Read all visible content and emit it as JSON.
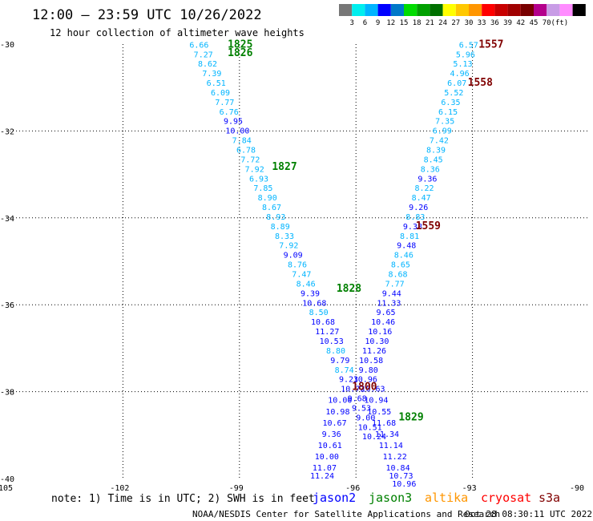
{
  "header": {
    "title": "12:00 – 23:59 UTC 10/26/2022",
    "subtitle": "12 hour collection of altimeter wave heights"
  },
  "colorbar": {
    "colors": [
      "#777777",
      "#00eeee",
      "#00b4ff",
      "#0000ff",
      "#0078c8",
      "#00dc00",
      "#00a000",
      "#007000",
      "#ffff00",
      "#ffc800",
      "#ff9600",
      "#ff0000",
      "#c80000",
      "#a00000",
      "#780000",
      "#b4008c",
      "#c89ce6",
      "#ff8cff",
      "#000000"
    ],
    "labels": [
      "3",
      "6",
      "9",
      "12",
      "15",
      "18",
      "21",
      "24",
      "27",
      "30",
      "33",
      "36",
      "39",
      "42",
      "45",
      "70",
      "(ft)"
    ]
  },
  "chart_data": {
    "type": "scatter",
    "xlim": [
      -105,
      -90
    ],
    "ylim": [
      -40,
      -30
    ],
    "xticks": [
      -105,
      -102,
      -99,
      -96,
      -93,
      -90
    ],
    "yticks": [
      -30,
      -32,
      -34,
      -36,
      -38,
      -40
    ],
    "xtick_labels": [
      "-105",
      "-102",
      "-99",
      "-96",
      "-93",
      "-90"
    ],
    "ytick_labels": [
      "-30",
      "-32",
      "-34",
      "-36",
      "-38",
      "-40"
    ],
    "grid": true,
    "track_left": {
      "colors": {
        "lo": "#00b4ff",
        "mid": "#0000ff"
      },
      "points": [
        {
          "x": -100.04,
          "y": -30.08,
          "v": "6.66",
          "c": "lo"
        },
        {
          "x": -99.93,
          "y": -30.3,
          "v": "7.27",
          "c": "lo"
        },
        {
          "x": -99.82,
          "y": -30.52,
          "v": "8.62",
          "c": "lo"
        },
        {
          "x": -99.71,
          "y": -30.74,
          "v": "7.39",
          "c": "lo"
        },
        {
          "x": -99.6,
          "y": -30.96,
          "v": "6.51",
          "c": "lo"
        },
        {
          "x": -99.49,
          "y": -31.18,
          "v": "6.09",
          "c": "lo"
        },
        {
          "x": -99.38,
          "y": -31.4,
          "v": "7.77",
          "c": "lo"
        },
        {
          "x": -99.27,
          "y": -31.62,
          "v": "6.76",
          "c": "lo"
        },
        {
          "x": -99.16,
          "y": -31.84,
          "v": "9.95",
          "c": "mid"
        },
        {
          "x": -99.05,
          "y": -32.06,
          "v": "10.00",
          "c": "mid"
        },
        {
          "x": -98.94,
          "y": -32.28,
          "v": "7.84",
          "c": "lo"
        },
        {
          "x": -98.83,
          "y": -32.5,
          "v": "6.78",
          "c": "lo"
        },
        {
          "x": -98.72,
          "y": -32.72,
          "v": "7.72",
          "c": "lo"
        },
        {
          "x": -98.61,
          "y": -32.94,
          "v": "7.92",
          "c": "lo"
        },
        {
          "x": -98.5,
          "y": -33.16,
          "v": "6.93",
          "c": "lo"
        },
        {
          "x": -98.39,
          "y": -33.38,
          "v": "7.85",
          "c": "lo"
        },
        {
          "x": -98.28,
          "y": -33.6,
          "v": "8.90",
          "c": "lo"
        },
        {
          "x": -98.17,
          "y": -33.82,
          "v": "8.67",
          "c": "lo"
        },
        {
          "x": -98.06,
          "y": -34.04,
          "v": "8.93",
          "c": "lo"
        },
        {
          "x": -97.95,
          "y": -34.26,
          "v": "8.89",
          "c": "lo"
        },
        {
          "x": -97.84,
          "y": -34.48,
          "v": "8.33",
          "c": "lo"
        },
        {
          "x": -97.73,
          "y": -34.7,
          "v": "7.92",
          "c": "lo"
        },
        {
          "x": -97.62,
          "y": -34.92,
          "v": "9.09",
          "c": "mid"
        },
        {
          "x": -97.51,
          "y": -35.14,
          "v": "8.76",
          "c": "lo"
        },
        {
          "x": -97.4,
          "y": -35.36,
          "v": "7.47",
          "c": "lo"
        },
        {
          "x": -97.29,
          "y": -35.58,
          "v": "8.46",
          "c": "lo"
        },
        {
          "x": -97.18,
          "y": -35.8,
          "v": "9.39",
          "c": "mid"
        },
        {
          "x": -97.07,
          "y": -36.02,
          "v": "10.68",
          "c": "mid"
        },
        {
          "x": -96.96,
          "y": -36.24,
          "v": "8.50",
          "c": "lo"
        },
        {
          "x": -96.85,
          "y": -36.46,
          "v": "10.68",
          "c": "mid"
        },
        {
          "x": -96.74,
          "y": -36.68,
          "v": "11.27",
          "c": "mid"
        },
        {
          "x": -96.63,
          "y": -36.9,
          "v": "10.53",
          "c": "mid"
        },
        {
          "x": -96.52,
          "y": -37.12,
          "v": "8.80",
          "c": "lo"
        },
        {
          "x": -96.41,
          "y": -37.34,
          "v": "9.79",
          "c": "mid"
        },
        {
          "x": -96.3,
          "y": -37.56,
          "v": "8.74",
          "c": "lo"
        },
        {
          "x": -96.19,
          "y": -37.78,
          "v": "9.23",
          "c": "mid"
        },
        {
          "x": -96.08,
          "y": -38.0,
          "v": "10.72",
          "c": "mid"
        },
        {
          "x": -95.97,
          "y": -38.22,
          "v": "9.68",
          "c": "mid"
        },
        {
          "x": -95.86,
          "y": -38.44,
          "v": "9.53",
          "c": "mid"
        },
        {
          "x": -95.75,
          "y": -38.66,
          "v": "9.00",
          "c": "mid"
        },
        {
          "x": -95.64,
          "y": -38.88,
          "v": "10.51",
          "c": "mid"
        },
        {
          "x": -95.53,
          "y": -39.1,
          "v": "10.24",
          "c": "mid"
        }
      ]
    },
    "track_left_lower": {
      "points": [
        {
          "x": -96.41,
          "y": -38.26,
          "v": "10.00"
        },
        {
          "x": -96.47,
          "y": -38.52,
          "v": "10.98"
        },
        {
          "x": -96.55,
          "y": -38.78,
          "v": "10.67"
        },
        {
          "x": -96.63,
          "y": -39.04,
          "v": "9.36"
        },
        {
          "x": -96.67,
          "y": -39.3,
          "v": "10.61"
        },
        {
          "x": -96.75,
          "y": -39.56,
          "v": "10.00"
        },
        {
          "x": -96.81,
          "y": -39.82,
          "v": "11.07"
        },
        {
          "x": -96.87,
          "y": -40.0,
          "v": "11.24"
        }
      ]
    },
    "track_right": {
      "points": [
        {
          "x": -93.1,
          "y": -30.08,
          "v": "6.57",
          "c": "lo"
        },
        {
          "x": -93.18,
          "y": -30.3,
          "v": "5.96",
          "c": "lo"
        },
        {
          "x": -93.25,
          "y": -30.52,
          "v": "5.13",
          "c": "lo"
        },
        {
          "x": -93.33,
          "y": -30.74,
          "v": "4.96",
          "c": "lo"
        },
        {
          "x": -93.4,
          "y": -30.96,
          "v": "6.07",
          "c": "lo"
        },
        {
          "x": -93.48,
          "y": -31.18,
          "v": "5.52",
          "c": "lo"
        },
        {
          "x": -93.56,
          "y": -31.4,
          "v": "6.35",
          "c": "lo"
        },
        {
          "x": -93.63,
          "y": -31.62,
          "v": "6.15",
          "c": "lo"
        },
        {
          "x": -93.71,
          "y": -31.84,
          "v": "7.35",
          "c": "lo"
        },
        {
          "x": -93.78,
          "y": -32.06,
          "v": "6.99",
          "c": "lo"
        },
        {
          "x": -93.86,
          "y": -32.28,
          "v": "7.42",
          "c": "lo"
        },
        {
          "x": -93.94,
          "y": -32.5,
          "v": "8.39",
          "c": "lo"
        },
        {
          "x": -94.01,
          "y": -32.72,
          "v": "8.45",
          "c": "lo"
        },
        {
          "x": -94.09,
          "y": -32.94,
          "v": "8.36",
          "c": "lo"
        },
        {
          "x": -94.16,
          "y": -33.16,
          "v": "9.36",
          "c": "mid"
        },
        {
          "x": -94.24,
          "y": -33.38,
          "v": "8.22",
          "c": "lo"
        },
        {
          "x": -94.32,
          "y": -33.6,
          "v": "8.47",
          "c": "lo"
        },
        {
          "x": -94.39,
          "y": -33.82,
          "v": "9.26",
          "c": "mid"
        },
        {
          "x": -94.47,
          "y": -34.04,
          "v": "8.83",
          "c": "lo"
        },
        {
          "x": -94.54,
          "y": -34.26,
          "v": "9.38",
          "c": "mid"
        },
        {
          "x": -94.62,
          "y": -34.48,
          "v": "8.81",
          "c": "lo"
        },
        {
          "x": -94.7,
          "y": -34.7,
          "v": "9.48",
          "c": "mid"
        },
        {
          "x": -94.77,
          "y": -34.92,
          "v": "8.46",
          "c": "lo"
        },
        {
          "x": -94.85,
          "y": -35.14,
          "v": "8.65",
          "c": "lo"
        },
        {
          "x": -94.92,
          "y": -35.36,
          "v": "8.68",
          "c": "lo"
        },
        {
          "x": -95.0,
          "y": -35.58,
          "v": "7.77",
          "c": "lo"
        },
        {
          "x": -95.08,
          "y": -35.8,
          "v": "9.44",
          "c": "mid"
        },
        {
          "x": -95.15,
          "y": -36.02,
          "v": "11.33",
          "c": "mid"
        },
        {
          "x": -95.23,
          "y": -36.24,
          "v": "9.65",
          "c": "mid"
        },
        {
          "x": -95.3,
          "y": -36.46,
          "v": "10.46",
          "c": "mid"
        },
        {
          "x": -95.38,
          "y": -36.68,
          "v": "10.16",
          "c": "mid"
        },
        {
          "x": -95.46,
          "y": -36.9,
          "v": "10.30",
          "c": "mid"
        },
        {
          "x": -95.53,
          "y": -37.12,
          "v": "11.26",
          "c": "mid"
        },
        {
          "x": -95.61,
          "y": -37.34,
          "v": "10.58",
          "c": "mid"
        },
        {
          "x": -95.68,
          "y": -37.56,
          "v": "9.80",
          "c": "mid"
        },
        {
          "x": -95.76,
          "y": -37.78,
          "v": "10.96",
          "c": "mid"
        }
      ]
    },
    "track_right_lower": {
      "points": [
        {
          "x": -95.56,
          "y": -38.0,
          "v": "10.63"
        },
        {
          "x": -95.48,
          "y": -38.26,
          "v": "10.94"
        },
        {
          "x": -95.4,
          "y": -38.52,
          "v": "10.55"
        },
        {
          "x": -95.28,
          "y": -38.78,
          "v": "11.68"
        },
        {
          "x": -95.2,
          "y": -39.04,
          "v": "11.34"
        },
        {
          "x": -95.1,
          "y": -39.3,
          "v": "11.14"
        },
        {
          "x": -95.0,
          "y": -39.56,
          "v": "11.22"
        },
        {
          "x": -94.92,
          "y": -39.82,
          "v": "10.84"
        },
        {
          "x": -94.84,
          "y": -40.0,
          "v": "10.73"
        },
        {
          "x": -94.76,
          "y": -40.18,
          "v": "10.96"
        }
      ]
    },
    "pass_labels": [
      {
        "text": "1825",
        "x": -98.98,
        "y": -30.08,
        "color": "#008000"
      },
      {
        "text": "1826",
        "x": -98.98,
        "y": -30.28,
        "color": "#008000"
      },
      {
        "text": "1827",
        "x": -97.84,
        "y": -32.9,
        "color": "#008000"
      },
      {
        "text": "1828",
        "x": -96.18,
        "y": -35.7,
        "color": "#008000"
      },
      {
        "text": "1829",
        "x": -94.58,
        "y": -38.66,
        "color": "#008000"
      },
      {
        "text": "1557",
        "x": -92.52,
        "y": -30.08,
        "color": "#800000"
      },
      {
        "text": "1558",
        "x": -92.8,
        "y": -30.96,
        "color": "#800000"
      },
      {
        "text": "1559",
        "x": -94.14,
        "y": -34.26,
        "color": "#800000"
      },
      {
        "text": "1800",
        "x": -95.78,
        "y": -37.96,
        "color": "#800000"
      }
    ]
  },
  "note": "note: 1) Time is in UTC; 2) SWH is in feet",
  "legend": [
    {
      "name": "jason2",
      "color": "#0000ff"
    },
    {
      "name": "jason3",
      "color": "#008000"
    },
    {
      "name": "altika",
      "color": "#ff9600"
    },
    {
      "name": "cryosat",
      "color": "#ff0000"
    },
    {
      "name": "s3a",
      "color": "#800000"
    }
  ],
  "footer": {
    "credit": "NOAA/NESDIS Center for Satellite Applications and Research",
    "timestamp": "Oct 28 08:30:11 UTC 2022"
  }
}
